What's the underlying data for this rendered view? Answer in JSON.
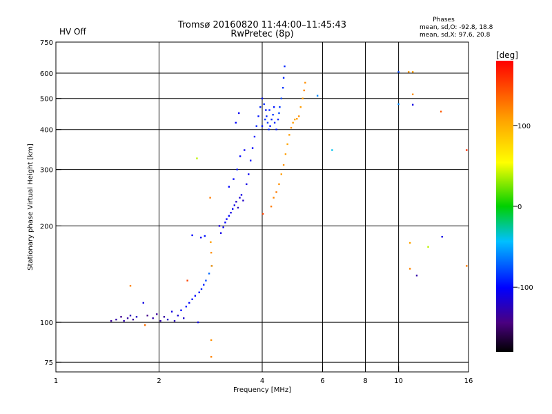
{
  "header": {
    "status": "HV Off",
    "title_line1": "Tromsø 20160820 11:44:00–11:45:43",
    "title_line2": "RwPretec (8p)",
    "phases_label": "Phases",
    "phases_o": "mean, sd,O: -92.8, 18.8",
    "phases_x": "mean, sd,X:  97.6, 20.8"
  },
  "colors": {
    "status": "#cc0000",
    "o_mode": "#2040e0",
    "x_mode": "#f0a000"
  },
  "colorbar": {
    "title": "[deg]",
    "range": [
      -180,
      180
    ],
    "ticks": [
      100,
      0,
      -100
    ],
    "tick_labels": [
      "100",
      "0",
      "-100"
    ]
  },
  "chart_data": {
    "type": "scatter",
    "title": "Tromsø 20160820 11:44:00–11:45:43",
    "subtitle": "RwPretec (8p)",
    "xlabel": "Frequency [MHz]",
    "ylabel": "Stationary phase Virtual Height [km]",
    "xscale": "log",
    "yscale": "log",
    "xlim": [
      1,
      16
    ],
    "ylim": [
      70,
      750
    ],
    "x_ticks": [
      1,
      2,
      4,
      6,
      8,
      10,
      16
    ],
    "x_tick_labels": [
      "1",
      "2",
      "4",
      "6",
      "8",
      "10",
      "16"
    ],
    "y_ticks": [
      75,
      100,
      200,
      300,
      400,
      500,
      600,
      750
    ],
    "y_tick_labels": [
      "75",
      "100",
      "200",
      "300",
      "400",
      "500",
      "600",
      "750"
    ],
    "grid": true,
    "color_encodes": "phase [deg]",
    "points": [
      {
        "x": 1.45,
        "y": 101,
        "phase": -135
      },
      {
        "x": 1.5,
        "y": 102,
        "phase": -130
      },
      {
        "x": 1.55,
        "y": 104,
        "phase": -138
      },
      {
        "x": 1.58,
        "y": 101,
        "phase": -128
      },
      {
        "x": 1.62,
        "y": 103,
        "phase": -132
      },
      {
        "x": 1.65,
        "y": 105,
        "phase": -125
      },
      {
        "x": 1.68,
        "y": 102,
        "phase": -135
      },
      {
        "x": 1.72,
        "y": 104,
        "phase": -120
      },
      {
        "x": 1.65,
        "y": 130,
        "phase": 120
      },
      {
        "x": 1.8,
        "y": 115,
        "phase": -110
      },
      {
        "x": 1.82,
        "y": 98,
        "phase": 130
      },
      {
        "x": 1.85,
        "y": 105,
        "phase": -140
      },
      {
        "x": 1.92,
        "y": 103,
        "phase": -130
      },
      {
        "x": 1.97,
        "y": 106,
        "phase": -135
      },
      {
        "x": 2.02,
        "y": 101,
        "phase": -128
      },
      {
        "x": 2.07,
        "y": 104,
        "phase": -132
      },
      {
        "x": 2.12,
        "y": 102,
        "phase": -120
      },
      {
        "x": 2.18,
        "y": 108,
        "phase": -110
      },
      {
        "x": 2.22,
        "y": 101,
        "phase": -125
      },
      {
        "x": 2.27,
        "y": 105,
        "phase": -115
      },
      {
        "x": 2.32,
        "y": 109,
        "phase": -100
      },
      {
        "x": 2.36,
        "y": 103,
        "phase": -118
      },
      {
        "x": 2.4,
        "y": 112,
        "phase": -95
      },
      {
        "x": 2.45,
        "y": 115,
        "phase": -100
      },
      {
        "x": 2.5,
        "y": 118,
        "phase": -95
      },
      {
        "x": 2.55,
        "y": 121,
        "phase": -100
      },
      {
        "x": 2.6,
        "y": 100,
        "phase": -110
      },
      {
        "x": 2.62,
        "y": 124,
        "phase": -95
      },
      {
        "x": 2.66,
        "y": 127,
        "phase": -90
      },
      {
        "x": 2.7,
        "y": 131,
        "phase": -92
      },
      {
        "x": 2.74,
        "y": 135,
        "phase": -80
      },
      {
        "x": 2.8,
        "y": 142,
        "phase": -70
      },
      {
        "x": 2.85,
        "y": 150,
        "phase": -75
      },
      {
        "x": 2.42,
        "y": 135,
        "phase": 150
      },
      {
        "x": 2.5,
        "y": 187,
        "phase": -100
      },
      {
        "x": 2.65,
        "y": 184,
        "phase": -105
      },
      {
        "x": 2.72,
        "y": 186,
        "phase": -95
      },
      {
        "x": 2.58,
        "y": 325,
        "phase": 40
      },
      {
        "x": 2.82,
        "y": 245,
        "phase": 125
      },
      {
        "x": 2.83,
        "y": 178,
        "phase": 110
      },
      {
        "x": 2.84,
        "y": 165,
        "phase": 115
      },
      {
        "x": 2.85,
        "y": 150,
        "phase": 110
      },
      {
        "x": 2.84,
        "y": 88,
        "phase": 115
      },
      {
        "x": 2.84,
        "y": 78,
        "phase": 120
      },
      {
        "x": 3.0,
        "y": 200,
        "phase": -115
      },
      {
        "x": 3.03,
        "y": 190,
        "phase": -110
      },
      {
        "x": 3.08,
        "y": 198,
        "phase": -105
      },
      {
        "x": 3.12,
        "y": 205,
        "phase": -100
      },
      {
        "x": 3.15,
        "y": 210,
        "phase": -105
      },
      {
        "x": 3.2,
        "y": 215,
        "phase": -100
      },
      {
        "x": 3.24,
        "y": 220,
        "phase": -110
      },
      {
        "x": 3.28,
        "y": 226,
        "phase": -105
      },
      {
        "x": 3.32,
        "y": 232,
        "phase": -110
      },
      {
        "x": 3.36,
        "y": 238,
        "phase": -120
      },
      {
        "x": 3.4,
        "y": 228,
        "phase": -125
      },
      {
        "x": 3.44,
        "y": 245,
        "phase": -115
      },
      {
        "x": 3.48,
        "y": 250,
        "phase": -110
      },
      {
        "x": 3.52,
        "y": 240,
        "phase": -120
      },
      {
        "x": 3.2,
        "y": 265,
        "phase": -100
      },
      {
        "x": 3.3,
        "y": 280,
        "phase": -100
      },
      {
        "x": 3.38,
        "y": 300,
        "phase": -95
      },
      {
        "x": 3.45,
        "y": 330,
        "phase": -100
      },
      {
        "x": 3.55,
        "y": 345,
        "phase": -105
      },
      {
        "x": 3.6,
        "y": 270,
        "phase": -110
      },
      {
        "x": 3.65,
        "y": 290,
        "phase": -105
      },
      {
        "x": 3.7,
        "y": 320,
        "phase": -100
      },
      {
        "x": 3.75,
        "y": 350,
        "phase": -100
      },
      {
        "x": 3.8,
        "y": 380,
        "phase": -95
      },
      {
        "x": 3.85,
        "y": 410,
        "phase": -90
      },
      {
        "x": 3.9,
        "y": 440,
        "phase": -95
      },
      {
        "x": 3.95,
        "y": 470,
        "phase": -90
      },
      {
        "x": 3.35,
        "y": 420,
        "phase": -100
      },
      {
        "x": 3.42,
        "y": 450,
        "phase": -105
      },
      {
        "x": 4.0,
        "y": 500,
        "phase": -95
      },
      {
        "x": 4.05,
        "y": 480,
        "phase": -90
      },
      {
        "x": 4.1,
        "y": 460,
        "phase": -95
      },
      {
        "x": 4.12,
        "y": 440,
        "phase": -90
      },
      {
        "x": 4.15,
        "y": 420,
        "phase": -85
      },
      {
        "x": 4.18,
        "y": 400,
        "phase": -90
      },
      {
        "x": 4.22,
        "y": 410,
        "phase": -95
      },
      {
        "x": 4.26,
        "y": 430,
        "phase": -90
      },
      {
        "x": 4.3,
        "y": 445,
        "phase": -85
      },
      {
        "x": 4.35,
        "y": 420,
        "phase": -90
      },
      {
        "x": 4.4,
        "y": 400,
        "phase": -95
      },
      {
        "x": 4.45,
        "y": 430,
        "phase": -90
      },
      {
        "x": 4.5,
        "y": 470,
        "phase": -85
      },
      {
        "x": 4.55,
        "y": 500,
        "phase": -80
      },
      {
        "x": 4.6,
        "y": 540,
        "phase": -85
      },
      {
        "x": 4.62,
        "y": 580,
        "phase": -90
      },
      {
        "x": 4.65,
        "y": 630,
        "phase": -90
      },
      {
        "x": 4.0,
        "y": 410,
        "phase": -95
      },
      {
        "x": 4.08,
        "y": 430,
        "phase": -85
      },
      {
        "x": 4.2,
        "y": 460,
        "phase": -90
      },
      {
        "x": 4.33,
        "y": 470,
        "phase": -95
      },
      {
        "x": 4.48,
        "y": 450,
        "phase": -80
      },
      {
        "x": 4.02,
        "y": 218,
        "phase": 150
      },
      {
        "x": 4.25,
        "y": 230,
        "phase": 125
      },
      {
        "x": 4.32,
        "y": 245,
        "phase": 120
      },
      {
        "x": 4.4,
        "y": 255,
        "phase": 125
      },
      {
        "x": 4.48,
        "y": 270,
        "phase": 115
      },
      {
        "x": 4.55,
        "y": 290,
        "phase": 110
      },
      {
        "x": 4.62,
        "y": 310,
        "phase": 115
      },
      {
        "x": 4.68,
        "y": 335,
        "phase": 110
      },
      {
        "x": 4.74,
        "y": 360,
        "phase": 105
      },
      {
        "x": 4.8,
        "y": 385,
        "phase": 110
      },
      {
        "x": 4.86,
        "y": 405,
        "phase": 115
      },
      {
        "x": 4.92,
        "y": 420,
        "phase": 110
      },
      {
        "x": 4.98,
        "y": 430,
        "phase": 105
      },
      {
        "x": 5.05,
        "y": 432,
        "phase": 110
      },
      {
        "x": 5.12,
        "y": 440,
        "phase": 115
      },
      {
        "x": 5.18,
        "y": 470,
        "phase": 110
      },
      {
        "x": 5.25,
        "y": 500,
        "phase": 110
      },
      {
        "x": 5.3,
        "y": 530,
        "phase": 120
      },
      {
        "x": 5.34,
        "y": 560,
        "phase": 115
      },
      {
        "x": 5.8,
        "y": 510,
        "phase": -60
      },
      {
        "x": 6.4,
        "y": 345,
        "phase": -40
      },
      {
        "x": 10.0,
        "y": 605,
        "phase": -80
      },
      {
        "x": 10.0,
        "y": 480,
        "phase": -60
      },
      {
        "x": 10.7,
        "y": 605,
        "phase": 110
      },
      {
        "x": 11.0,
        "y": 605,
        "phase": 105
      },
      {
        "x": 11.0,
        "y": 515,
        "phase": 115
      },
      {
        "x": 11.0,
        "y": 478,
        "phase": -110
      },
      {
        "x": 10.8,
        "y": 177,
        "phase": 105
      },
      {
        "x": 10.8,
        "y": 147,
        "phase": 120
      },
      {
        "x": 11.3,
        "y": 140,
        "phase": -130
      },
      {
        "x": 12.2,
        "y": 172,
        "phase": 40
      },
      {
        "x": 13.3,
        "y": 455,
        "phase": 140
      },
      {
        "x": 13.4,
        "y": 185,
        "phase": -110
      },
      {
        "x": 15.8,
        "y": 345,
        "phase": 160
      },
      {
        "x": 15.8,
        "y": 150,
        "phase": 125
      }
    ]
  }
}
